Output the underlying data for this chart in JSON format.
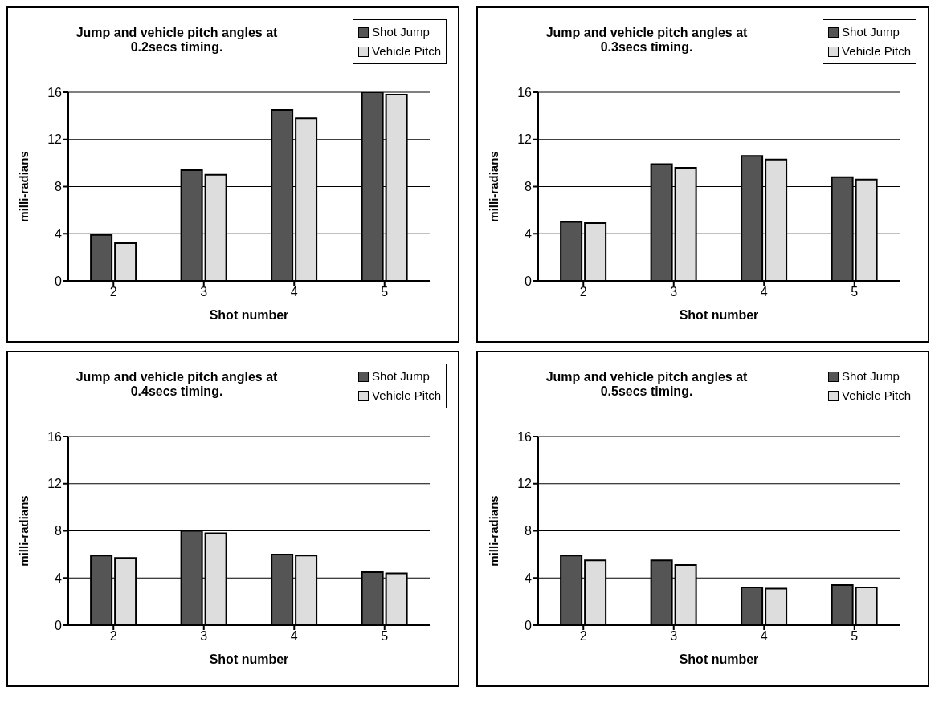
{
  "chart_data": [
    {
      "type": "bar",
      "title": "Jump and vehicle pitch angles at 0.2secs timing.",
      "xlabel": "Shot number",
      "ylabel": "milli-radians",
      "categories": [
        "2",
        "3",
        "4",
        "5"
      ],
      "series": [
        {
          "name": "Shot Jump",
          "color": "#555555",
          "values": [
            3.9,
            9.4,
            14.5,
            16
          ]
        },
        {
          "name": "Vehicle Pitch",
          "color": "#dddddd",
          "values": [
            3.2,
            9.0,
            13.8,
            15.8
          ]
        }
      ],
      "ylim": [
        0,
        16
      ],
      "yticks": [
        0,
        4,
        8,
        12,
        16
      ],
      "grid": "y",
      "legend": "top right"
    },
    {
      "type": "bar",
      "title": "Jump and vehicle pitch angles at 0.3secs timing.",
      "xlabel": "Shot number",
      "ylabel": "milli-radians",
      "categories": [
        "2",
        "3",
        "4",
        "5"
      ],
      "series": [
        {
          "name": "Shot Jump",
          "color": "#555555",
          "values": [
            5.0,
            9.9,
            10.6,
            8.8
          ]
        },
        {
          "name": "Vehicle Pitch",
          "color": "#dddddd",
          "values": [
            4.9,
            9.6,
            10.3,
            8.6
          ]
        }
      ],
      "ylim": [
        0,
        16
      ],
      "yticks": [
        0,
        4,
        8,
        12,
        16
      ],
      "grid": "y",
      "legend": "top right"
    },
    {
      "type": "bar",
      "title": "Jump and vehicle pitch angles at 0.4secs timing.",
      "xlabel": "Shot number",
      "ylabel": "milli-radians",
      "categories": [
        "2",
        "3",
        "4",
        "5"
      ],
      "series": [
        {
          "name": "Shot Jump",
          "color": "#555555",
          "values": [
            5.9,
            8.0,
            6.0,
            4.5
          ]
        },
        {
          "name": "Vehicle Pitch",
          "color": "#dddddd",
          "values": [
            5.7,
            7.8,
            5.9,
            4.4
          ]
        }
      ],
      "ylim": [
        0,
        16
      ],
      "yticks": [
        0,
        4,
        8,
        12,
        16
      ],
      "grid": "y",
      "legend": "top right"
    },
    {
      "type": "bar",
      "title": "Jump and vehicle pitch angles at 0.5secs timing.",
      "xlabel": "Shot number",
      "ylabel": "milli-radians",
      "categories": [
        "2",
        "3",
        "4",
        "5"
      ],
      "series": [
        {
          "name": "Shot Jump",
          "color": "#555555",
          "values": [
            5.9,
            5.5,
            3.2,
            3.4
          ]
        },
        {
          "name": "Vehicle Pitch",
          "color": "#dddddd",
          "values": [
            5.5,
            5.1,
            3.1,
            3.2
          ]
        }
      ],
      "ylim": [
        0,
        16
      ],
      "yticks": [
        0,
        4,
        8,
        12,
        16
      ],
      "grid": "y",
      "legend": "top right"
    }
  ]
}
